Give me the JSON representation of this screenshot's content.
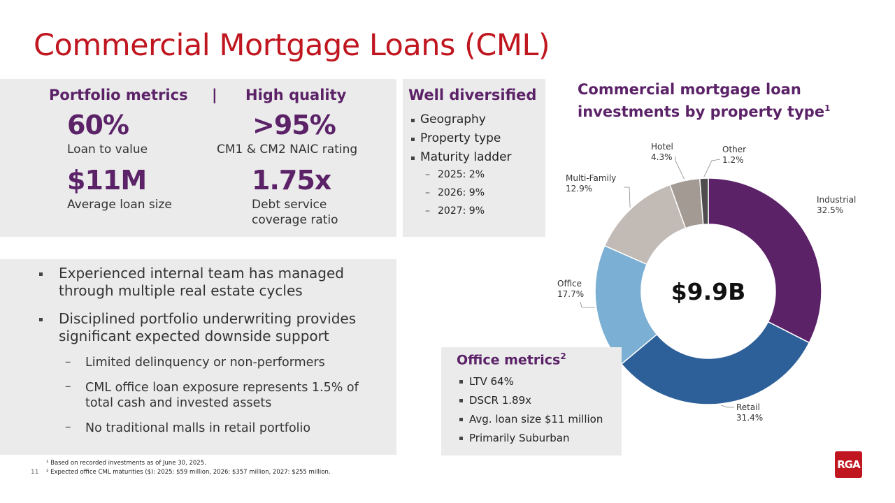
{
  "title": "Commercial Mortgage Loans (CML)",
  "metrics": {
    "header_left": "Portfolio metrics",
    "separator": "|",
    "header_right": "High quality",
    "ltv_value": "60%",
    "ltv_label": "Loan to value",
    "naic_value": ">95%",
    "naic_label": "CM1 & CM2 NAIC rating",
    "loan_value": "$11M",
    "loan_label": "Average loan size",
    "dscr_value": "1.75x",
    "dscr_label_1": "Debt service",
    "dscr_label_2": "coverage ratio"
  },
  "diversified": {
    "header": "Well diversified",
    "items": [
      "Geography",
      "Property type",
      "Maturity ladder"
    ],
    "subitems": [
      "2025: 2%",
      "2026: 9%",
      "2027: 9%"
    ]
  },
  "bullets": {
    "b1_line1": "Experienced internal team has managed",
    "b1_line2": "through multiple real estate cycles",
    "b2_line1": "Disciplined portfolio underwriting provides",
    "b2_line2": "significant expected downside support",
    "s1": "Limited delinquency or non-performers",
    "s2_line1": "CML office loan exposure represents 1.5% of",
    "s2_line2": "total cash and invested assets",
    "s3": "No traditional malls in retail portfolio"
  },
  "office": {
    "header": "Office metrics",
    "sup": "2",
    "items": [
      "LTV 64%",
      "DSCR 1.89x",
      "Avg. loan size $11 million",
      "Primarily Suburban"
    ]
  },
  "chart_title_line1": "Commercial mortgage loan",
  "chart_title_line2": "investments by property type",
  "chart_title_sup": "1",
  "chart_data": {
    "type": "pie",
    "donut": true,
    "center_label": "$9.9B",
    "categories": [
      "Industrial",
      "Retail",
      "Office",
      "Multi-Family",
      "Hotel",
      "Other"
    ],
    "values": [
      32.5,
      31.4,
      17.7,
      12.9,
      4.3,
      1.2
    ],
    "value_labels": [
      "32.5%",
      "31.4%",
      "17.7%",
      "12.9%",
      "4.3%",
      "1.2%"
    ],
    "colors": [
      "#5b2268",
      "#2d6099",
      "#7bafd4",
      "#c1bab5",
      "#a39a94",
      "#4f4d4d"
    ]
  },
  "footnotes": {
    "f1": "¹ Based on recorded investments as of June 30, 2025.",
    "f2": "² Expected office CML maturities ($): 2025: $59 million, 2026: $357 million, 2027: $255 million."
  },
  "page_number": "11",
  "logo_text": "RGA"
}
